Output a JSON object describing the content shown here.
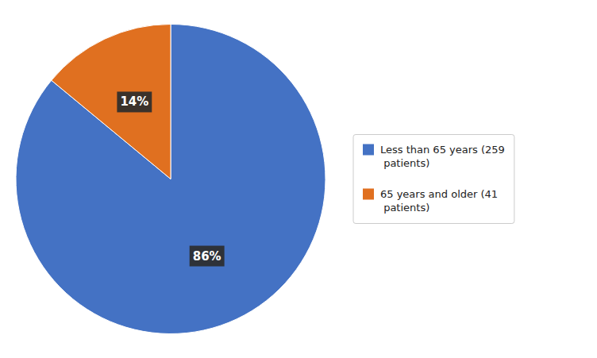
{
  "chart_data": {
    "type": "pie",
    "categories": [
      "Less than 65 years (259\n patients)",
      "65 years and older (41\n patients)"
    ],
    "values": [
      86,
      14
    ],
    "value_labels": [
      "86%",
      "14%"
    ],
    "colors": [
      "#4472C4",
      "#E07020"
    ],
    "data_labels": true,
    "legend": "right"
  }
}
